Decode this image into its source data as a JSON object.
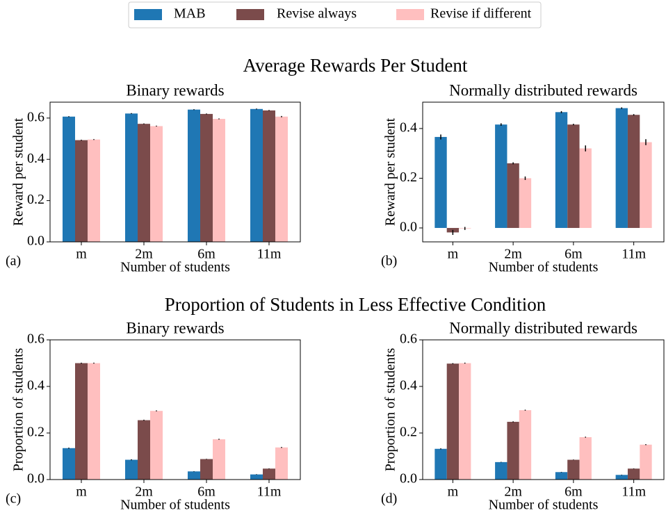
{
  "headings": [
    "Average Rewards Per Student",
    "Proportion of Students in Less Effective Condition"
  ],
  "chart_data": [
    {
      "type": "bar",
      "panel_label": "(a)",
      "title": "Binary rewards",
      "xlabel": "Number of students",
      "ylabel": "Reward per student",
      "categories": [
        "m",
        "2m",
        "6m",
        "11m"
      ],
      "series": [
        {
          "name": "MAB",
          "color": "#1f77b4",
          "values": [
            0.607,
            0.622,
            0.641,
            0.644
          ],
          "errors": [
            0.002,
            0.002,
            0.002,
            0.002
          ]
        },
        {
          "name": "Revise always",
          "color": "#7b4b4b",
          "values": [
            0.493,
            0.572,
            0.62,
            0.637
          ],
          "errors": [
            0.002,
            0.002,
            0.002,
            0.002
          ]
        },
        {
          "name": "Revise if different",
          "color": "#ffbfbf",
          "values": [
            0.496,
            0.561,
            0.596,
            0.607
          ],
          "errors": [
            0.002,
            0.002,
            0.002,
            0.003
          ]
        }
      ],
      "ylim": [
        0,
        0.677
      ],
      "yticks": [
        0.0,
        0.2,
        0.4,
        0.6
      ]
    },
    {
      "type": "bar",
      "panel_label": "(b)",
      "title": "Normally distributed rewards",
      "xlabel": "Number of students",
      "ylabel": "Reward per student",
      "categories": [
        "m",
        "2m",
        "6m",
        "11m"
      ],
      "series": [
        {
          "name": "MAB",
          "color": "#1f77b4",
          "values": [
            0.366,
            0.416,
            0.466,
            0.482
          ],
          "errors": [
            0.01,
            0.005,
            0.004,
            0.003
          ]
        },
        {
          "name": "Revise always",
          "color": "#7b4b4b",
          "values": [
            -0.018,
            0.26,
            0.416,
            0.455
          ],
          "errors": [
            0.01,
            0.004,
            0.003,
            0.003
          ]
        },
        {
          "name": "Revise if different",
          "color": "#ffbfbf",
          "values": [
            -0.002,
            0.2,
            0.32,
            0.345
          ],
          "errors": [
            0.006,
            0.007,
            0.012,
            0.012
          ]
        }
      ],
      "ylim": [
        -0.056,
        0.506
      ],
      "yticks": [
        0.0,
        0.2,
        0.4
      ]
    },
    {
      "type": "bar",
      "panel_label": "(c)",
      "title": "Binary rewards",
      "xlabel": "Number of students",
      "ylabel": "Proportion of students",
      "categories": [
        "m",
        "2m",
        "6m",
        "11m"
      ],
      "series": [
        {
          "name": "MAB",
          "color": "#1f77b4",
          "values": [
            0.135,
            0.085,
            0.035,
            0.022
          ],
          "errors": [
            0.002,
            0.002,
            0.001,
            0.001
          ]
        },
        {
          "name": "Revise always",
          "color": "#7b4b4b",
          "values": [
            0.5,
            0.255,
            0.088,
            0.047
          ],
          "errors": [
            0.002,
            0.002,
            0.001,
            0.001
          ]
        },
        {
          "name": "Revise if different",
          "color": "#ffbfbf",
          "values": [
            0.5,
            0.295,
            0.173,
            0.138
          ],
          "errors": [
            0.002,
            0.002,
            0.002,
            0.002
          ]
        }
      ],
      "ylim": [
        0,
        0.6
      ],
      "yticks": [
        0.0,
        0.2,
        0.4,
        0.6
      ]
    },
    {
      "type": "bar",
      "panel_label": "(d)",
      "title": "Normally distributed rewards",
      "xlabel": "Number of students",
      "ylabel": "Proportion of students",
      "categories": [
        "m",
        "2m",
        "6m",
        "11m"
      ],
      "series": [
        {
          "name": "MAB",
          "color": "#1f77b4",
          "values": [
            0.132,
            0.075,
            0.032,
            0.02
          ],
          "errors": [
            0.002,
            0.001,
            0.001,
            0.001
          ]
        },
        {
          "name": "Revise always",
          "color": "#7b4b4b",
          "values": [
            0.498,
            0.248,
            0.085,
            0.047
          ],
          "errors": [
            0.002,
            0.002,
            0.001,
            0.001
          ]
        },
        {
          "name": "Revise if different",
          "color": "#ffbfbf",
          "values": [
            0.5,
            0.298,
            0.182,
            0.15
          ],
          "errors": [
            0.002,
            0.002,
            0.002,
            0.002
          ]
        }
      ],
      "ylim": [
        0,
        0.6
      ],
      "yticks": [
        0.0,
        0.2,
        0.4,
        0.6
      ]
    }
  ]
}
